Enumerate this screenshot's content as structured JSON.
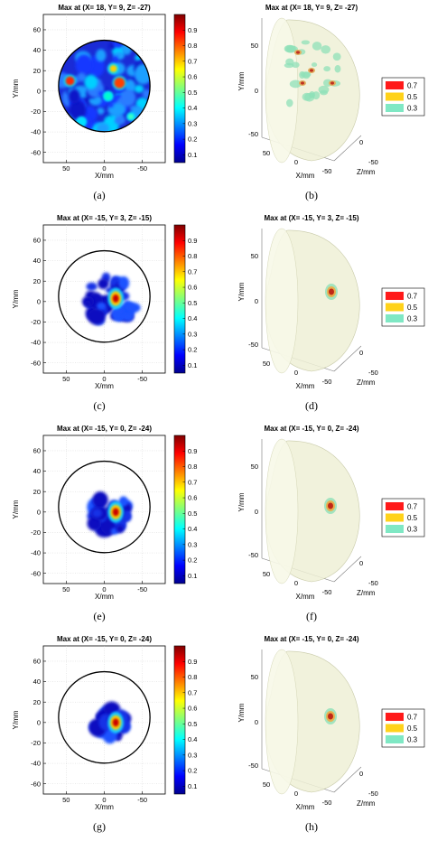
{
  "figure": {
    "panels": [
      {
        "label": "(a)",
        "type": "map2d",
        "title": "Max at (X= 18, Y= 9, Z= -27)",
        "variant": 0
      },
      {
        "label": "(b)",
        "type": "iso3d",
        "title": "Max at (X= 18, Y= 9, Z= -27)",
        "variant": 0
      },
      {
        "label": "(c)",
        "type": "map2d",
        "title": "Max at (X= -15, Y= 3, Z= -15)",
        "variant": 1
      },
      {
        "label": "(d)",
        "type": "iso3d",
        "title": "Max at (X= -15, Y= 3, Z= -15)",
        "variant": 1
      },
      {
        "label": "(e)",
        "type": "map2d",
        "title": "Max at (X= -15, Y= 0, Z= -24)",
        "variant": 2
      },
      {
        "label": "(f)",
        "type": "iso3d",
        "title": "Max at (X= -15, Y= 0, Z= -24)",
        "variant": 2
      },
      {
        "label": "(g)",
        "type": "map2d",
        "title": "Max at (X= -15, Y= 0, Z= -24)",
        "variant": 3
      },
      {
        "label": "(h)",
        "type": "iso3d",
        "title": "Max at (X= -15, Y= 0, Z= -24)",
        "variant": 3
      }
    ]
  },
  "chart_data": [
    {
      "type": "heatmap",
      "panel": "(a)",
      "title": "Max at (X= 18, Y= 9, Z= -27)",
      "xlabel": "X/mm",
      "ylabel": "Y/mm",
      "x_ticks": [
        "50",
        "0",
        "-50"
      ],
      "y_ticks": [
        "60",
        "40",
        "20",
        "0",
        "-20",
        "-40",
        "-60"
      ],
      "xlim": [
        80,
        -80
      ],
      "ylim": [
        -70,
        75
      ],
      "x_reversed": true,
      "colorbar_ticks": [
        "0.9",
        "0.8",
        "0.7",
        "0.6",
        "0.5",
        "0.4",
        "0.3",
        "0.2",
        "0.1"
      ],
      "colorbar_range": [
        0.05,
        1
      ],
      "max_location": {
        "x": 18,
        "y": 9,
        "z": -27
      },
      "sources": [
        {
          "x": 18,
          "y": 9,
          "value": 1
        }
      ]
    },
    {
      "type": "scatter",
      "panel": "(b)",
      "title": "Max at (X= 18, Y= 9, Z= -27)",
      "xlabel": "X/mm",
      "ylabel": "Y/mm",
      "zlabel": "Z/mm",
      "x_ticks": [
        "50",
        "0",
        "-50"
      ],
      "y_ticks": [
        "50",
        "0",
        "-50"
      ],
      "z_ticks": [
        "0",
        "-50"
      ],
      "legend": {
        "entries": [
          "0.7",
          "0.5",
          "0.3"
        ],
        "colors": [
          "#ff1a1a",
          "#ffd21a",
          "#7fe8c4"
        ],
        "placement": "right"
      }
    },
    {
      "type": "heatmap",
      "panel": "(c)",
      "title": "Max at (X= -15, Y= 3, Z= -15)",
      "xlabel": "X/mm",
      "ylabel": "Y/mm",
      "x_ticks": [
        "50",
        "0",
        "-50"
      ],
      "y_ticks": [
        "60",
        "40",
        "20",
        "0",
        "-20",
        "-40",
        "-60"
      ],
      "xlim": [
        80,
        -80
      ],
      "ylim": [
        -70,
        75
      ],
      "x_reversed": true,
      "colorbar_ticks": [
        "0.9",
        "0.8",
        "0.7",
        "0.6",
        "0.5",
        "0.4",
        "0.3",
        "0.2",
        "0.1"
      ],
      "colorbar_range": [
        0.05,
        1
      ],
      "max_location": {
        "x": -15,
        "y": 3,
        "z": -15
      },
      "sources": [
        {
          "x": -15,
          "y": 3,
          "value": 1
        }
      ]
    },
    {
      "type": "scatter",
      "panel": "(d)",
      "title": "Max at (X= -15, Y= 3, Z= -15)",
      "xlabel": "X/mm",
      "ylabel": "Y/mm",
      "zlabel": "Z/mm",
      "x_ticks": [
        "50",
        "0",
        "-50"
      ],
      "y_ticks": [
        "50",
        "0",
        "-50"
      ],
      "z_ticks": [
        "0",
        "-50"
      ],
      "legend": {
        "entries": [
          "0.7",
          "0.5",
          "0.3"
        ],
        "colors": [
          "#ff1a1a",
          "#ffd21a",
          "#7fe8c4"
        ],
        "placement": "right"
      }
    },
    {
      "type": "heatmap",
      "panel": "(e)",
      "title": "Max at (X= -15, Y= 0, Z= -24)",
      "xlabel": "X/mm",
      "ylabel": "Y/mm",
      "x_ticks": [
        "50",
        "0",
        "-50"
      ],
      "y_ticks": [
        "60",
        "40",
        "20",
        "0",
        "-20",
        "-40",
        "-60"
      ],
      "xlim": [
        80,
        -80
      ],
      "ylim": [
        -70,
        75
      ],
      "x_reversed": true,
      "colorbar_ticks": [
        "0.9",
        "0.8",
        "0.7",
        "0.6",
        "0.5",
        "0.4",
        "0.3",
        "0.2",
        "0.1"
      ],
      "colorbar_range": [
        0.05,
        1
      ],
      "max_location": {
        "x": -15,
        "y": 0,
        "z": -24
      },
      "sources": [
        {
          "x": -15,
          "y": 0,
          "value": 1
        }
      ]
    },
    {
      "type": "scatter",
      "panel": "(f)",
      "title": "Max at (X= -15, Y= 0, Z= -24)",
      "xlabel": "X/mm",
      "ylabel": "Y/mm",
      "zlabel": "Z/mm",
      "x_ticks": [
        "50",
        "0",
        "-50"
      ],
      "y_ticks": [
        "50",
        "0",
        "-50"
      ],
      "z_ticks": [
        "0",
        "-50"
      ],
      "legend": {
        "entries": [
          "0.7",
          "0.5",
          "0.3"
        ],
        "colors": [
          "#ff1a1a",
          "#ffd21a",
          "#7fe8c4"
        ],
        "placement": "right"
      }
    },
    {
      "type": "heatmap",
      "panel": "(g)",
      "title": "Max at (X= -15, Y= 0, Z= -24)",
      "xlabel": "X/mm",
      "ylabel": "Y/mm",
      "x_ticks": [
        "50",
        "0",
        "-50"
      ],
      "y_ticks": [
        "60",
        "40",
        "20",
        "0",
        "-20",
        "-40",
        "-60"
      ],
      "xlim": [
        80,
        -80
      ],
      "ylim": [
        -70,
        75
      ],
      "x_reversed": true,
      "colorbar_ticks": [
        "0.9",
        "0.8",
        "0.7",
        "0.6",
        "0.5",
        "0.4",
        "0.3",
        "0.2",
        "0.1"
      ],
      "colorbar_range": [
        0.05,
        1
      ],
      "max_location": {
        "x": -15,
        "y": 0,
        "z": -24
      },
      "sources": [
        {
          "x": -15,
          "y": 0,
          "value": 1
        }
      ]
    },
    {
      "type": "scatter",
      "panel": "(h)",
      "title": "Max at (X= -15, Y= 0, Z= -24)",
      "xlabel": "X/mm",
      "ylabel": "Y/mm",
      "zlabel": "Z/mm",
      "x_ticks": [
        "50",
        "0",
        "-50"
      ],
      "y_ticks": [
        "50",
        "0",
        "-50"
      ],
      "z_ticks": [
        "0",
        "-50"
      ],
      "legend": {
        "entries": [
          "0.7",
          "0.5",
          "0.3"
        ],
        "colors": [
          "#ff1a1a",
          "#ffd21a",
          "#7fe8c4"
        ],
        "placement": "right"
      }
    }
  ],
  "colors": {
    "jet_low": "#00008f",
    "jet_mid": "#7fff7f",
    "jet_high": "#800000",
    "sphere_fill": "#eef0d6",
    "legend_07": "#ff1a1a",
    "legend_05": "#ffd21a",
    "legend_03": "#7fe8c4"
  }
}
